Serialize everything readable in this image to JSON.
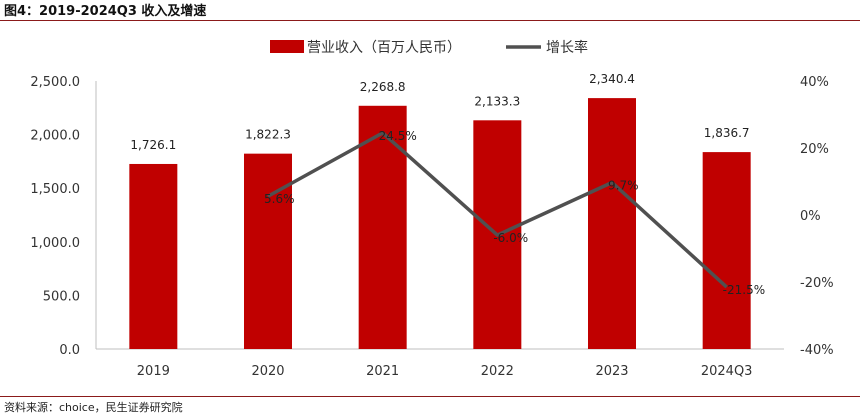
{
  "figure_title": "图4：2019-2024Q3 收入及增速",
  "source": "资料来源：choice，民生证券研究院",
  "colors": {
    "bar": "#c00000",
    "line": "#505050",
    "rule": "#8b1a1a"
  },
  "chart_data": {
    "type": "bar",
    "categories": [
      "2019",
      "2020",
      "2021",
      "2022",
      "2023",
      "2024Q3"
    ],
    "series": [
      {
        "name": "营业收入（百万人民币）",
        "type": "bar",
        "axis": "left",
        "values": [
          1726.1,
          1822.3,
          2268.8,
          2133.3,
          2340.4,
          1836.7
        ],
        "labels": [
          "1,726.1",
          "1,822.3",
          "2,268.8",
          "2,133.3",
          "2,340.4",
          "1,836.7"
        ]
      },
      {
        "name": "增长率",
        "type": "line",
        "axis": "right",
        "values": [
          null,
          5.6,
          24.5,
          -6.0,
          9.7,
          -21.5
        ],
        "labels": [
          "",
          "5.6%",
          "24.5%",
          "-6.0%",
          "9.7%",
          "-21.5%"
        ]
      }
    ],
    "y_left": {
      "ylim": [
        0,
        2500
      ],
      "ticks": [
        0,
        500,
        1000,
        1500,
        2000,
        2500
      ],
      "tick_labels": [
        "0.0",
        "500.0",
        "1,000.0",
        "1,500.0",
        "2,000.0",
        "2,500.0"
      ]
    },
    "y_right": {
      "ylim": [
        -40,
        40
      ],
      "ticks": [
        -40,
        -20,
        0,
        20,
        40
      ],
      "tick_labels": [
        "-40%",
        "-20%",
        "0%",
        "20%",
        "40%"
      ]
    },
    "legend": {
      "position": "top"
    },
    "grid": false
  }
}
